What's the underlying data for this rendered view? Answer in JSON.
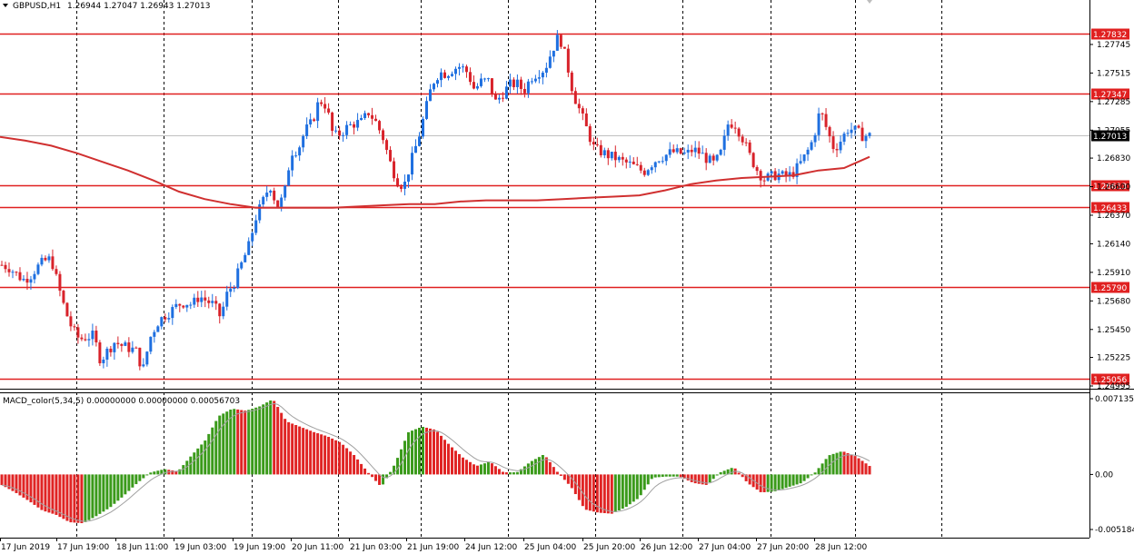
{
  "header": {
    "symbol": "GBPUSD,H1",
    "ohlc": "1.26944 1.27047 1.26943 1.27013"
  },
  "indicator": {
    "label": "MACD_color(5,34,5) 0.00000000 0.00000000 0.00056703",
    "axis_labels": [
      "0.0071356",
      "0.00",
      "-0.0051846"
    ]
  },
  "colors": {
    "bull": "#1e6fe0",
    "bear": "#d8222a",
    "ma": "#d03030",
    "level": "#e02020",
    "hist_up": "#3a9a1a",
    "hist_down": "#e02424",
    "signal": "#a0a0a0",
    "grid": "#000000"
  },
  "chart_data": [
    {
      "type": "candlestick",
      "symbol": "GBPUSD",
      "timeframe": "H1",
      "ylim": [
        1.24995,
        1.27975
      ],
      "price_ticks": [
        "1.27745",
        "1.27515",
        "1.27285",
        "1.27055",
        "1.26830",
        "1.26600",
        "1.26370",
        "1.26140",
        "1.25910",
        "1.25680",
        "1.25450",
        "1.25225",
        "1.24995"
      ],
      "current_price": "1.27013",
      "levels": [
        "1.27832",
        "1.27347",
        "1.26613",
        "1.26433",
        "1.25790",
        "1.25056"
      ],
      "time_labels": [
        "17 Jun 2019",
        "17 Jun 19:00",
        "18 Jun 11:00",
        "19 Jun 03:00",
        "19 Jun 19:00",
        "20 Jun 11:00",
        "21 Jun 03:00",
        "21 Jun 19:00",
        "24 Jun 12:00",
        "25 Jun 04:00",
        "25 Jun 20:00",
        "26 Jun 12:00",
        "27 Jun 04:00",
        "27 Jun 20:00",
        "28 Jun 12:00"
      ],
      "close_path": [
        1.2597,
        1.2595,
        1.259,
        1.2585,
        1.2588,
        1.2595,
        1.26,
        1.2602,
        1.258,
        1.256,
        1.2545,
        1.2537,
        1.2539,
        1.254,
        1.252,
        1.2528,
        1.2535,
        1.2532,
        1.253,
        1.2528,
        1.2512,
        1.2538,
        1.255,
        1.2556,
        1.256,
        1.2565,
        1.2567,
        1.2565,
        1.2572,
        1.2568,
        1.2565,
        1.2555,
        1.2575,
        1.2583,
        1.2598,
        1.2612,
        1.2635,
        1.2648,
        1.2662,
        1.2644,
        1.2652,
        1.2688,
        1.269,
        1.2705,
        1.2712,
        1.273,
        1.2725,
        1.27,
        1.2703,
        1.2708,
        1.2711,
        1.2712,
        1.272,
        1.2712,
        1.27,
        1.268,
        1.2665,
        1.266,
        1.268,
        1.2698,
        1.272,
        1.2743,
        1.2752,
        1.2751,
        1.2755,
        1.2757,
        1.2752,
        1.2738,
        1.2745,
        1.2745,
        1.2728,
        1.2735,
        1.2742,
        1.2743,
        1.2737,
        1.2748,
        1.2752,
        1.2755,
        1.277,
        1.2782,
        1.2762,
        1.2735,
        1.272,
        1.2705,
        1.269,
        1.2688,
        1.2685,
        1.2683,
        1.268,
        1.2678,
        1.2675,
        1.2672,
        1.2678,
        1.2683,
        1.2685,
        1.2688,
        1.2687,
        1.2686,
        1.269,
        1.2687,
        1.2682,
        1.2678,
        1.2688,
        1.2712,
        1.271,
        1.2699,
        1.2685,
        1.2674,
        1.2666,
        1.2668,
        1.267,
        1.2668,
        1.267,
        1.2677,
        1.2686,
        1.2698,
        1.2722,
        1.2705,
        1.269,
        1.2698,
        1.2707,
        1.2705,
        1.2701,
        1.2701
      ],
      "ma_path": [
        1.27,
        1.2697,
        1.2693,
        1.2687,
        1.268,
        1.2673,
        1.2665,
        1.2656,
        1.265,
        1.2646,
        1.2643,
        1.2643,
        1.2643,
        1.2643,
        1.2644,
        1.2645,
        1.2646,
        1.2646,
        1.2648,
        1.2649,
        1.2649,
        1.2649,
        1.265,
        1.2651,
        1.2652,
        1.2653,
        1.2657,
        1.2662,
        1.2665,
        1.2667,
        1.2668,
        1.2669,
        1.2673,
        1.2675,
        1.2684
      ],
      "macd_hist": [
        -0.001,
        -0.0017,
        -0.0025,
        -0.0034,
        -0.0038,
        -0.0045,
        -0.0046,
        -0.0039,
        -0.0031,
        -0.002,
        -0.0008,
        0.0002,
        0.0005,
        0.0003,
        0.0018,
        0.0032,
        0.0055,
        0.0062,
        0.006,
        0.0064,
        0.0071,
        0.005,
        0.0045,
        0.004,
        0.0036,
        0.003,
        0.0018,
        0.0002,
        -0.0012,
        0.001,
        0.004,
        0.0045,
        0.0042,
        0.0028,
        0.0016,
        0.0008,
        0.0012,
        0.0002,
        0.0002,
        0.0012,
        0.0019,
        0.0002,
        -0.0012,
        -0.0033,
        -0.0036,
        -0.0037,
        -0.0031,
        -0.0022,
        -0.0003,
        -0.0002,
        -0.0002,
        -0.0008,
        -0.001,
        0.0002,
        0.0007,
        -0.0008,
        -0.0017,
        -0.0016,
        -0.0012,
        -0.0008,
        0.0002,
        0.0018,
        0.0022,
        0.0017,
        0.0008
      ],
      "macd_ylim": [
        -0.0051846,
        0.0071356
      ]
    }
  ]
}
